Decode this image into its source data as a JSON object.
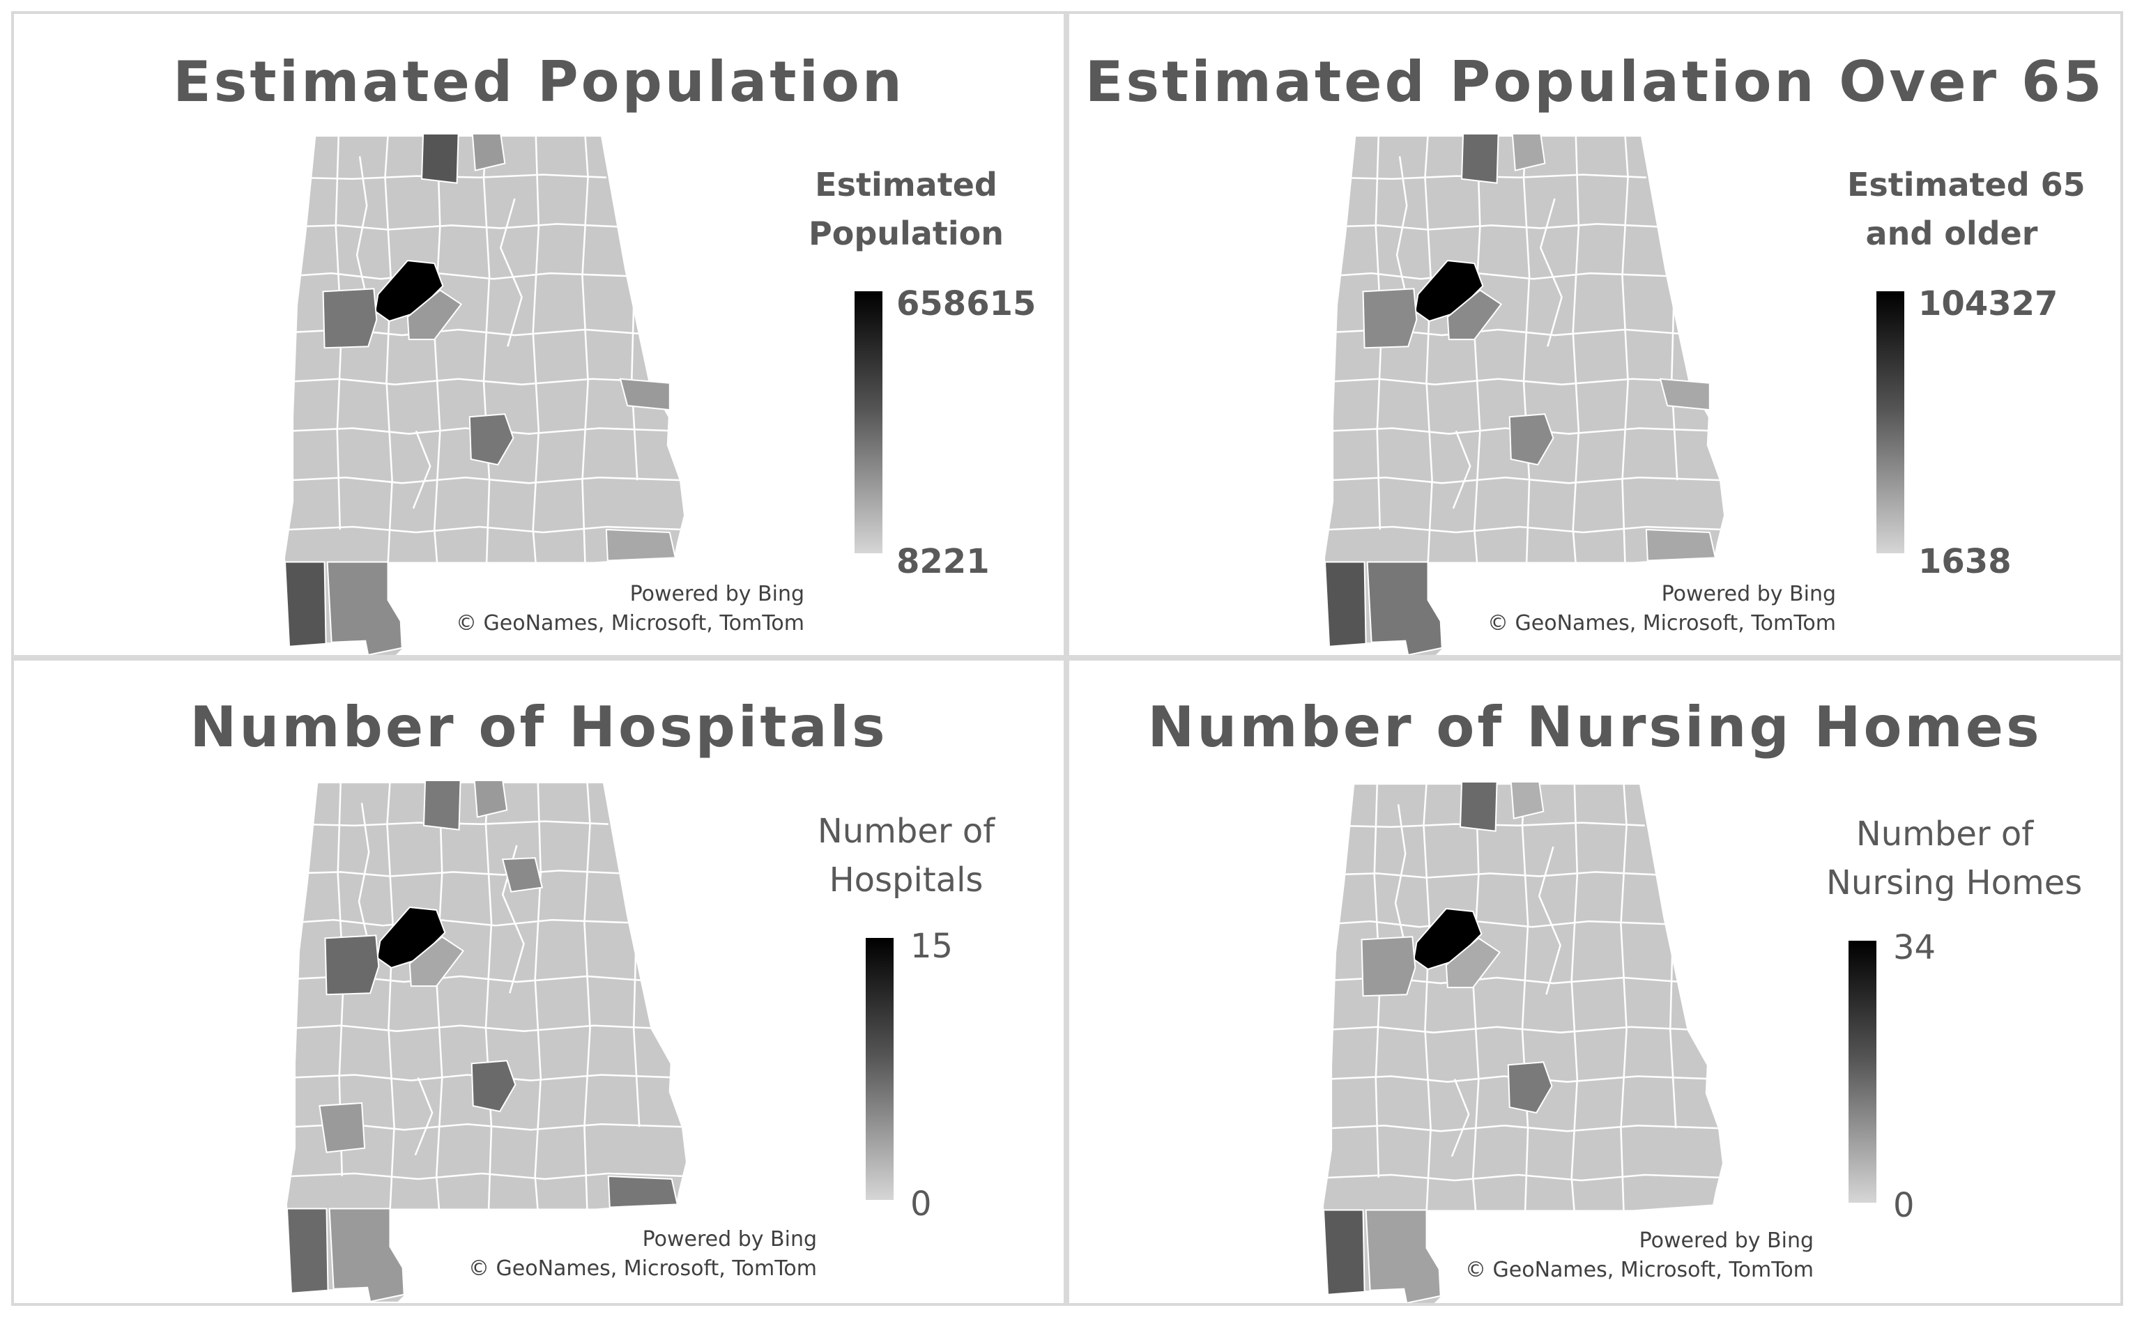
{
  "map_colors": {
    "base": "#c8c8c8",
    "border": "#ffffff",
    "max": "#000000",
    "dark": "#555555",
    "mid": "#777777",
    "light": "#9a9a9a"
  },
  "panels": [
    {
      "title": "Estimated Population",
      "legend_title_line1": "Estimated",
      "legend_title_line2": "Population",
      "legend_max": "658615",
      "legend_min": "8221",
      "credit_line1": "Powered by Bing",
      "credit_line2": "© GeoNames, Microsoft, TomTom"
    },
    {
      "title": "Estimated Population Over 65",
      "legend_title_line1": "Estimated 65",
      "legend_title_line2": "and older",
      "legend_max": "104327",
      "legend_min": "1638",
      "credit_line1": "Powered by Bing",
      "credit_line2": "© GeoNames, Microsoft, TomTom"
    },
    {
      "title": "Number of Hospitals",
      "legend_title_line1": "Number of",
      "legend_title_line2": "Hospitals",
      "legend_max": "15",
      "legend_min": "0",
      "credit_line1": "Powered by Bing",
      "credit_line2": "© GeoNames, Microsoft, TomTom"
    },
    {
      "title": "Number of Nursing Homes",
      "legend_title_line1": "Number of",
      "legend_title_line2": "Nursing Homes",
      "legend_max": "34",
      "legend_min": "0",
      "credit_line1": "Powered by Bing",
      "credit_line2": "© GeoNames, Microsoft, TomTom"
    }
  ]
}
